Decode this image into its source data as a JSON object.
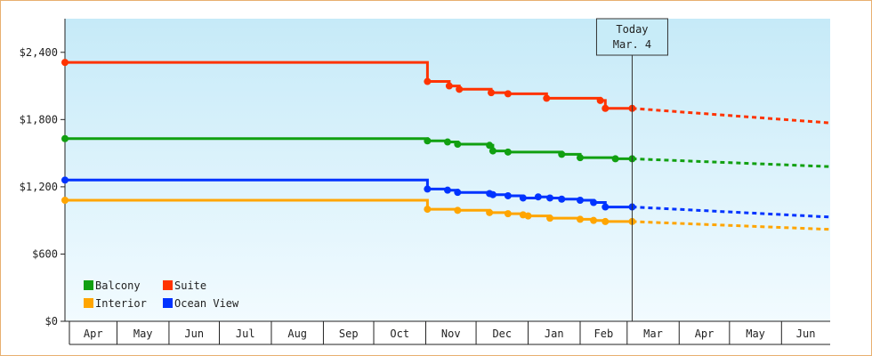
{
  "chart_data": {
    "type": "line",
    "title": "",
    "xlabel": "",
    "ylabel": "",
    "ylim": [
      0,
      2700
    ],
    "y_ticks": [
      {
        "value": 0,
        "label": "$0"
      },
      {
        "value": 600,
        "label": "$600"
      },
      {
        "value": 1200,
        "label": "$1,200"
      },
      {
        "value": 1800,
        "label": "$1,800"
      },
      {
        "value": 2400,
        "label": "$2,400"
      }
    ],
    "x_range": [
      "2024-03-31",
      "2025-06-30"
    ],
    "x_months": [
      {
        "label": "Apr",
        "start": "2024-04-01"
      },
      {
        "label": "May",
        "start": "2024-05-01"
      },
      {
        "label": "Jun",
        "start": "2024-06-01"
      },
      {
        "label": "Jul",
        "start": "2024-07-01"
      },
      {
        "label": "Aug",
        "start": "2024-08-01"
      },
      {
        "label": "Sep",
        "start": "2024-09-01"
      },
      {
        "label": "Oct",
        "start": "2024-10-01"
      },
      {
        "label": "Nov",
        "start": "2024-11-01"
      },
      {
        "label": "Dec",
        "start": "2024-12-01"
      },
      {
        "label": "Jan",
        "start": "2025-01-01"
      },
      {
        "label": "Feb",
        "start": "2025-02-01"
      },
      {
        "label": "Mar",
        "start": "2025-03-01"
      },
      {
        "label": "Apr",
        "start": "2025-04-01"
      },
      {
        "label": "May",
        "start": "2025-05-01"
      },
      {
        "label": "Jun",
        "start": "2025-06-01"
      }
    ],
    "today": {
      "line1": "Today",
      "line2": "Mar. 4",
      "date": "2025-03-04"
    },
    "legend_position": "bottom-left",
    "grid": false,
    "series": [
      {
        "name": "Suite",
        "color": "#ff3300",
        "points": [
          {
            "x": "2024-03-31",
            "y": 2310
          },
          {
            "x": "2024-11-01",
            "y": 2310
          },
          {
            "x": "2024-11-02",
            "y": 2140
          },
          {
            "x": "2024-11-14",
            "y": 2140
          },
          {
            "x": "2024-11-15",
            "y": 2100
          },
          {
            "x": "2024-11-20",
            "y": 2100
          },
          {
            "x": "2024-11-21",
            "y": 2070
          },
          {
            "x": "2024-12-09",
            "y": 2070
          },
          {
            "x": "2024-12-10",
            "y": 2040
          },
          {
            "x": "2024-12-20",
            "y": 2030
          },
          {
            "x": "2024-12-29",
            "y": 2030
          },
          {
            "x": "2025-01-07",
            "y": 2030
          },
          {
            "x": "2025-01-12",
            "y": 2030
          },
          {
            "x": "2025-01-12",
            "y": 1990
          },
          {
            "x": "2025-02-09",
            "y": 1990
          },
          {
            "x": "2025-02-13",
            "y": 1970
          },
          {
            "x": "2025-02-16",
            "y": 1900
          },
          {
            "x": "2025-03-04",
            "y": 1900
          }
        ],
        "forecast": [
          {
            "x": "2025-03-04",
            "y": 1900
          },
          {
            "x": "2025-06-30",
            "y": 1770
          }
        ]
      },
      {
        "name": "Balcony",
        "color": "#11a011",
        "points": [
          {
            "x": "2024-03-31",
            "y": 1630
          },
          {
            "x": "2024-11-01",
            "y": 1630
          },
          {
            "x": "2024-11-02",
            "y": 1610
          },
          {
            "x": "2024-11-14",
            "y": 1600
          },
          {
            "x": "2024-11-20",
            "y": 1580
          },
          {
            "x": "2024-12-09",
            "y": 1570
          },
          {
            "x": "2024-12-11",
            "y": 1520
          },
          {
            "x": "2024-12-20",
            "y": 1510
          },
          {
            "x": "2024-12-29",
            "y": 1510
          },
          {
            "x": "2025-01-07",
            "y": 1510
          },
          {
            "x": "2025-01-14",
            "y": 1510
          },
          {
            "x": "2025-01-21",
            "y": 1490
          },
          {
            "x": "2025-02-01",
            "y": 1460
          },
          {
            "x": "2025-02-22",
            "y": 1450
          },
          {
            "x": "2025-03-04",
            "y": 1450
          }
        ],
        "forecast": [
          {
            "x": "2025-03-04",
            "y": 1450
          },
          {
            "x": "2025-06-30",
            "y": 1380
          }
        ]
      },
      {
        "name": "Ocean View",
        "color": "#0033ff",
        "points": [
          {
            "x": "2024-03-31",
            "y": 1260
          },
          {
            "x": "2024-11-01",
            "y": 1260
          },
          {
            "x": "2024-11-02",
            "y": 1180
          },
          {
            "x": "2024-11-14",
            "y": 1170
          },
          {
            "x": "2024-11-20",
            "y": 1150
          },
          {
            "x": "2024-12-09",
            "y": 1140
          },
          {
            "x": "2024-12-11",
            "y": 1130
          },
          {
            "x": "2024-12-20",
            "y": 1120
          },
          {
            "x": "2024-12-29",
            "y": 1100
          },
          {
            "x": "2025-01-01",
            "y": 1100
          },
          {
            "x": "2025-01-07",
            "y": 1110
          },
          {
            "x": "2025-01-14",
            "y": 1100
          },
          {
            "x": "2025-01-21",
            "y": 1090
          },
          {
            "x": "2025-02-01",
            "y": 1080
          },
          {
            "x": "2025-02-09",
            "y": 1060
          },
          {
            "x": "2025-02-16",
            "y": 1020
          },
          {
            "x": "2025-02-22",
            "y": 1020
          },
          {
            "x": "2025-03-04",
            "y": 1020
          }
        ],
        "forecast": [
          {
            "x": "2025-03-04",
            "y": 1020
          },
          {
            "x": "2025-06-30",
            "y": 930
          }
        ]
      },
      {
        "name": "Interior",
        "color": "#ffa500",
        "points": [
          {
            "x": "2024-03-31",
            "y": 1080
          },
          {
            "x": "2024-11-01",
            "y": 1080
          },
          {
            "x": "2024-11-02",
            "y": 1000
          },
          {
            "x": "2024-11-20",
            "y": 990
          },
          {
            "x": "2024-12-09",
            "y": 970
          },
          {
            "x": "2024-12-20",
            "y": 960
          },
          {
            "x": "2024-12-29",
            "y": 950
          },
          {
            "x": "2025-01-01",
            "y": 940
          },
          {
            "x": "2025-01-14",
            "y": 920
          },
          {
            "x": "2025-02-01",
            "y": 910
          },
          {
            "x": "2025-02-09",
            "y": 900
          },
          {
            "x": "2025-02-16",
            "y": 890
          },
          {
            "x": "2025-03-04",
            "y": 890
          }
        ],
        "forecast": [
          {
            "x": "2025-03-04",
            "y": 890
          },
          {
            "x": "2025-06-30",
            "y": 820
          }
        ]
      }
    ],
    "legend": [
      {
        "name": "Balcony",
        "color": "#11a011"
      },
      {
        "name": "Suite",
        "color": "#ff3300"
      },
      {
        "name": "Interior",
        "color": "#ffa500"
      },
      {
        "name": "Ocean View",
        "color": "#0033ff"
      }
    ]
  }
}
